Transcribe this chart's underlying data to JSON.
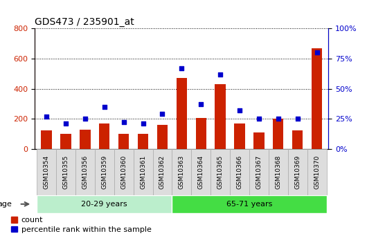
{
  "title": "GDS473 / 235901_at",
  "samples": [
    "GSM10354",
    "GSM10355",
    "GSM10356",
    "GSM10359",
    "GSM10360",
    "GSM10361",
    "GSM10362",
    "GSM10363",
    "GSM10364",
    "GSM10365",
    "GSM10366",
    "GSM10367",
    "GSM10368",
    "GSM10369",
    "GSM10370"
  ],
  "count": [
    120,
    100,
    125,
    170,
    100,
    100,
    160,
    470,
    205,
    430,
    170,
    110,
    200,
    120,
    670
  ],
  "percentile": [
    27,
    21,
    25,
    35,
    22,
    21,
    29,
    67,
    37,
    62,
    32,
    25,
    25,
    25,
    80
  ],
  "group1_label": "20-29 years",
  "group2_label": "65-71 years",
  "group1_count": 7,
  "group2_count": 8,
  "age_label": "age",
  "bar_color": "#cc2200",
  "dot_color": "#0000cc",
  "group1_bg": "#bbeecc",
  "group2_bg": "#44dd44",
  "ylim_left": [
    0,
    800
  ],
  "ylim_right": [
    0,
    100
  ],
  "yticks_left": [
    0,
    200,
    400,
    600,
    800
  ],
  "yticks_right": [
    0,
    25,
    50,
    75,
    100
  ],
  "ytick_labels_right": [
    "0%",
    "25%",
    "50%",
    "75%",
    "100%"
  ],
  "legend_count_label": "count",
  "legend_pct_label": "percentile rank within the sample",
  "bar_width": 0.55,
  "tick_label_color_left": "#cc2200",
  "tick_label_color_right": "#0000cc",
  "xlabel_cell_bg": "#dddddd",
  "xlabel_cell_border": "#aaaaaa"
}
